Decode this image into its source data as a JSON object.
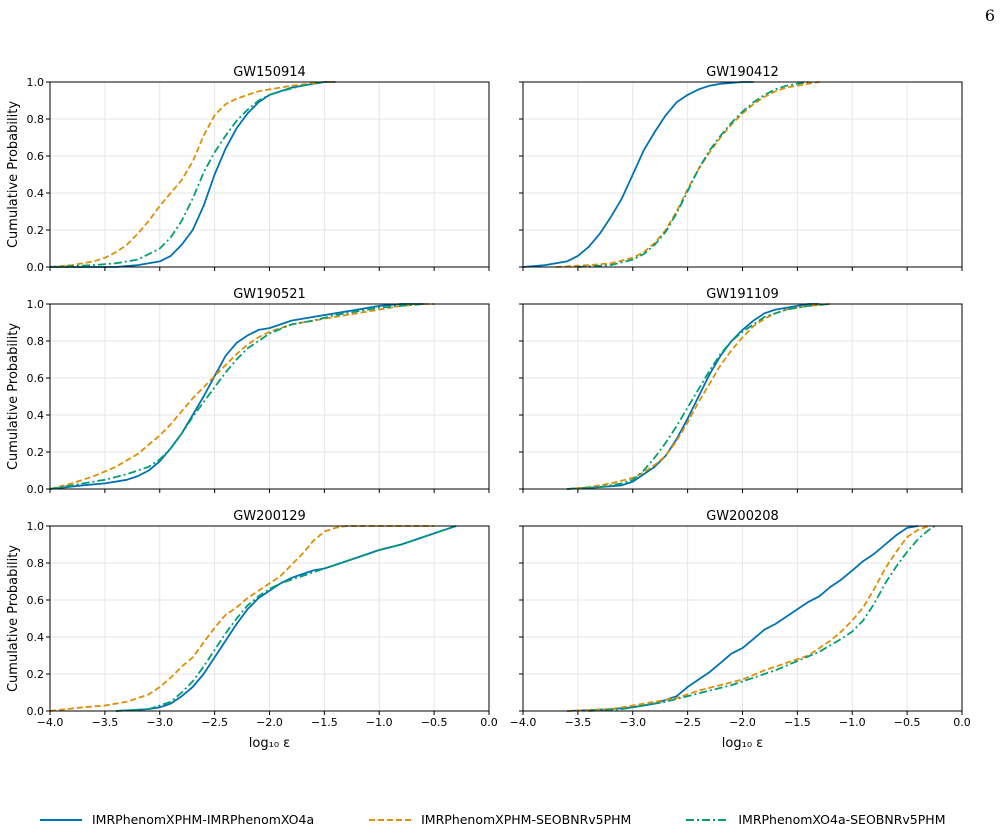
{
  "page": {
    "number": "6"
  },
  "chart_data": {
    "type": "line",
    "ylabel": "Cumulative Probability",
    "xlabel": "log₁₀ ε",
    "xlim": [
      -4.0,
      0.0
    ],
    "ylim": [
      0.0,
      1.0
    ],
    "xticks": [
      "−4.0",
      "−3.5",
      "−3.0",
      "−2.5",
      "−2.0",
      "−1.5",
      "−1.0",
      "−0.5",
      "0.0"
    ],
    "yticks": [
      "0.0",
      "0.2",
      "0.4",
      "0.6",
      "0.8",
      "1.0"
    ],
    "grid": true,
    "legend": {
      "placement": "bottom",
      "entries": [
        {
          "name": "IMRPhenomXPHM-IMRPhenomXO4a",
          "color": "#0072b2",
          "style": "solid"
        },
        {
          "name": "IMRPhenomXPHM-SEOBNRv5PHM",
          "color": "#de8f05",
          "style": "dashed"
        },
        {
          "name": "IMRPhenomXO4a-SEOBNRv5PHM",
          "color": "#029e73",
          "style": "dashdot"
        }
      ]
    },
    "panels": [
      {
        "title": "GW150914",
        "series": [
          {
            "name": "IMRPhenomXPHM-IMRPhenomXO4a",
            "x": [
              -4.0,
              -3.4,
              -3.2,
              -3.0,
              -2.9,
              -2.8,
              -2.7,
              -2.6,
              -2.5,
              -2.4,
              -2.3,
              -2.2,
              -2.1,
              -2.0,
              -1.9,
              -1.8,
              -1.6,
              -1.5,
              -1.4
            ],
            "y": [
              0.0,
              0.0,
              0.01,
              0.03,
              0.06,
              0.12,
              0.2,
              0.33,
              0.5,
              0.64,
              0.75,
              0.83,
              0.89,
              0.93,
              0.95,
              0.97,
              0.99,
              1.0,
              1.0
            ]
          },
          {
            "name": "IMRPhenomXPHM-SEOBNRv5PHM",
            "x": [
              -4.0,
              -3.8,
              -3.6,
              -3.5,
              -3.4,
              -3.3,
              -3.2,
              -3.1,
              -3.0,
              -2.9,
              -2.8,
              -2.7,
              -2.6,
              -2.5,
              -2.4,
              -2.3,
              -2.2,
              -2.1,
              -2.0,
              -1.8,
              -1.5,
              -1.4
            ],
            "y": [
              0.0,
              0.01,
              0.03,
              0.05,
              0.08,
              0.12,
              0.18,
              0.25,
              0.33,
              0.4,
              0.47,
              0.57,
              0.71,
              0.82,
              0.88,
              0.91,
              0.93,
              0.95,
              0.96,
              0.98,
              1.0,
              1.0
            ]
          },
          {
            "name": "IMRPhenomXO4a-SEOBNRv5PHM",
            "x": [
              -4.0,
              -3.6,
              -3.4,
              -3.2,
              -3.0,
              -2.9,
              -2.8,
              -2.7,
              -2.6,
              -2.5,
              -2.4,
              -2.3,
              -2.2,
              -2.1,
              -2.0,
              -1.9,
              -1.7,
              -1.5
            ],
            "y": [
              0.0,
              0.01,
              0.02,
              0.04,
              0.1,
              0.16,
              0.25,
              0.37,
              0.51,
              0.62,
              0.71,
              0.79,
              0.85,
              0.9,
              0.93,
              0.95,
              0.98,
              1.0
            ]
          }
        ]
      },
      {
        "title": "GW190412",
        "series": [
          {
            "name": "IMRPhenomXPHM-IMRPhenomXO4a",
            "x": [
              -4.0,
              -3.8,
              -3.6,
              -3.5,
              -3.4,
              -3.3,
              -3.2,
              -3.1,
              -3.0,
              -2.9,
              -2.8,
              -2.7,
              -2.6,
              -2.5,
              -2.4,
              -2.3,
              -2.2,
              -2.0,
              -1.9
            ],
            "y": [
              0.0,
              0.01,
              0.03,
              0.06,
              0.11,
              0.18,
              0.27,
              0.37,
              0.5,
              0.63,
              0.73,
              0.82,
              0.89,
              0.93,
              0.96,
              0.98,
              0.99,
              1.0,
              1.0
            ]
          },
          {
            "name": "IMRPhenomXPHM-SEOBNRv5PHM",
            "x": [
              -3.7,
              -3.4,
              -3.2,
              -3.0,
              -2.9,
              -2.8,
              -2.7,
              -2.6,
              -2.5,
              -2.4,
              -2.3,
              -2.2,
              -2.1,
              -2.0,
              -1.9,
              -1.8,
              -1.7,
              -1.6,
              -1.5,
              -1.4,
              -1.3
            ],
            "y": [
              0.0,
              0.01,
              0.02,
              0.05,
              0.08,
              0.13,
              0.2,
              0.3,
              0.42,
              0.53,
              0.62,
              0.7,
              0.77,
              0.83,
              0.88,
              0.92,
              0.95,
              0.97,
              0.98,
              0.99,
              1.0
            ]
          },
          {
            "name": "IMRPhenomXO4a-SEOBNRv5PHM",
            "x": [
              -3.5,
              -3.2,
              -3.0,
              -2.9,
              -2.8,
              -2.7,
              -2.6,
              -2.5,
              -2.4,
              -2.3,
              -2.2,
              -2.1,
              -2.0,
              -1.9,
              -1.8,
              -1.7,
              -1.6,
              -1.5,
              -1.4
            ],
            "y": [
              0.0,
              0.01,
              0.04,
              0.07,
              0.12,
              0.19,
              0.29,
              0.41,
              0.53,
              0.63,
              0.71,
              0.78,
              0.84,
              0.89,
              0.93,
              0.96,
              0.98,
              0.99,
              1.0
            ]
          }
        ]
      },
      {
        "title": "GW190521",
        "series": [
          {
            "name": "IMRPhenomXPHM-IMRPhenomXO4a",
            "x": [
              -4.0,
              -3.7,
              -3.5,
              -3.3,
              -3.2,
              -3.1,
              -3.0,
              -2.9,
              -2.8,
              -2.7,
              -2.6,
              -2.5,
              -2.4,
              -2.3,
              -2.2,
              -2.1,
              -2.0,
              -1.9,
              -1.8,
              -1.6,
              -1.4,
              -1.2,
              -1.0,
              -0.8,
              -0.6
            ],
            "y": [
              0.0,
              0.02,
              0.03,
              0.05,
              0.07,
              0.1,
              0.15,
              0.22,
              0.3,
              0.4,
              0.5,
              0.61,
              0.72,
              0.79,
              0.83,
              0.86,
              0.87,
              0.89,
              0.91,
              0.93,
              0.95,
              0.97,
              0.99,
              1.0,
              1.0
            ]
          },
          {
            "name": "IMRPhenomXPHM-SEOBNRv5PHM",
            "x": [
              -4.0,
              -3.8,
              -3.6,
              -3.4,
              -3.2,
              -3.0,
              -2.9,
              -2.8,
              -2.7,
              -2.6,
              -2.5,
              -2.4,
              -2.3,
              -2.2,
              -2.1,
              -2.0,
              -1.8,
              -1.6,
              -1.4,
              -1.2,
              -1.0,
              -0.8,
              -0.6,
              -0.5
            ],
            "y": [
              0.0,
              0.03,
              0.07,
              0.12,
              0.19,
              0.29,
              0.35,
              0.42,
              0.49,
              0.55,
              0.61,
              0.67,
              0.73,
              0.78,
              0.82,
              0.85,
              0.89,
              0.91,
              0.93,
              0.95,
              0.97,
              0.99,
              1.0,
              1.0
            ]
          },
          {
            "name": "IMRPhenomXO4a-SEOBNRv5PHM",
            "x": [
              -4.0,
              -3.7,
              -3.5,
              -3.3,
              -3.1,
              -3.0,
              -2.9,
              -2.8,
              -2.7,
              -2.6,
              -2.5,
              -2.4,
              -2.3,
              -2.2,
              -2.1,
              -2.0,
              -1.8,
              -1.6,
              -1.4,
              -1.2,
              -1.0,
              -0.8,
              -0.6
            ],
            "y": [
              0.0,
              0.03,
              0.05,
              0.08,
              0.12,
              0.16,
              0.22,
              0.3,
              0.39,
              0.47,
              0.55,
              0.63,
              0.7,
              0.76,
              0.8,
              0.84,
              0.89,
              0.91,
              0.94,
              0.96,
              0.98,
              0.99,
              1.0
            ]
          }
        ]
      },
      {
        "title": "GW191109",
        "series": [
          {
            "name": "IMRPhenomXPHM-IMRPhenomXO4a",
            "x": [
              -3.6,
              -3.3,
              -3.1,
              -3.0,
              -2.9,
              -2.8,
              -2.7,
              -2.6,
              -2.5,
              -2.4,
              -2.3,
              -2.2,
              -2.1,
              -2.0,
              -1.9,
              -1.8,
              -1.7,
              -1.6,
              -1.5,
              -1.4,
              -1.3
            ],
            "y": [
              0.0,
              0.01,
              0.02,
              0.04,
              0.08,
              0.12,
              0.18,
              0.27,
              0.38,
              0.5,
              0.62,
              0.72,
              0.8,
              0.86,
              0.91,
              0.95,
              0.97,
              0.98,
              0.99,
              1.0,
              1.0
            ]
          },
          {
            "name": "IMRPhenomXPHM-SEOBNRv5PHM",
            "x": [
              -3.6,
              -3.4,
              -3.2,
              -3.0,
              -2.9,
              -2.8,
              -2.7,
              -2.6,
              -2.5,
              -2.4,
              -2.3,
              -2.2,
              -2.1,
              -2.0,
              -1.9,
              -1.8,
              -1.7,
              -1.6,
              -1.5,
              -1.4,
              -1.2
            ],
            "y": [
              0.0,
              0.01,
              0.03,
              0.06,
              0.09,
              0.13,
              0.18,
              0.26,
              0.36,
              0.47,
              0.57,
              0.67,
              0.75,
              0.82,
              0.88,
              0.92,
              0.95,
              0.97,
              0.98,
              0.99,
              1.0
            ]
          },
          {
            "name": "IMRPhenomXO4a-SEOBNRv5PHM",
            "x": [
              -3.6,
              -3.3,
              -3.1,
              -3.0,
              -2.9,
              -2.8,
              -2.7,
              -2.6,
              -2.5,
              -2.4,
              -2.3,
              -2.2,
              -2.1,
              -2.0,
              -1.9,
              -1.8,
              -1.7,
              -1.6,
              -1.5,
              -1.4,
              -1.2
            ],
            "y": [
              0.0,
              0.01,
              0.03,
              0.05,
              0.1,
              0.17,
              0.25,
              0.34,
              0.44,
              0.54,
              0.64,
              0.73,
              0.8,
              0.85,
              0.89,
              0.93,
              0.95,
              0.97,
              0.98,
              0.99,
              1.0
            ]
          }
        ]
      },
      {
        "title": "GW200129",
        "series": [
          {
            "name": "IMRPhenomXPHM-IMRPhenomXO4a",
            "x": [
              -3.4,
              -3.1,
              -3.0,
              -2.9,
              -2.8,
              -2.7,
              -2.6,
              -2.5,
              -2.4,
              -2.3,
              -2.2,
              -2.1,
              -2.0,
              -1.9,
              -1.8,
              -1.7,
              -1.6,
              -1.5,
              -1.4,
              -1.2,
              -1.0,
              -0.8,
              -0.6,
              -0.4,
              -0.3
            ],
            "y": [
              0.0,
              0.01,
              0.02,
              0.04,
              0.08,
              0.13,
              0.2,
              0.29,
              0.38,
              0.47,
              0.55,
              0.61,
              0.65,
              0.69,
              0.72,
              0.74,
              0.76,
              0.77,
              0.79,
              0.83,
              0.87,
              0.9,
              0.94,
              0.98,
              1.0
            ]
          },
          {
            "name": "IMRPhenomXPHM-SEOBNRv5PHM",
            "x": [
              -4.0,
              -3.7,
              -3.5,
              -3.3,
              -3.1,
              -3.0,
              -2.9,
              -2.8,
              -2.7,
              -2.6,
              -2.5,
              -2.4,
              -2.3,
              -2.2,
              -2.1,
              -2.0,
              -1.9,
              -1.8,
              -1.7,
              -1.6,
              -1.5,
              -1.4,
              -1.3,
              -1.0,
              -0.5
            ],
            "y": [
              0.0,
              0.02,
              0.03,
              0.05,
              0.09,
              0.13,
              0.18,
              0.24,
              0.29,
              0.37,
              0.45,
              0.52,
              0.56,
              0.61,
              0.65,
              0.69,
              0.73,
              0.79,
              0.85,
              0.92,
              0.97,
              0.99,
              1.0,
              1.0,
              1.0
            ]
          },
          {
            "name": "IMRPhenomXO4a-SEOBNRv5PHM",
            "x": [
              -3.4,
              -3.1,
              -3.0,
              -2.9,
              -2.8,
              -2.7,
              -2.6,
              -2.5,
              -2.4,
              -2.3,
              -2.2,
              -2.1,
              -2.0,
              -1.9,
              -1.8,
              -1.7,
              -1.6,
              -1.5,
              -1.4,
              -1.2,
              -1.0,
              -0.8,
              -0.6,
              -0.4,
              -0.3
            ],
            "y": [
              0.0,
              0.01,
              0.03,
              0.05,
              0.1,
              0.16,
              0.24,
              0.33,
              0.42,
              0.5,
              0.57,
              0.62,
              0.66,
              0.69,
              0.71,
              0.73,
              0.75,
              0.77,
              0.79,
              0.83,
              0.87,
              0.9,
              0.94,
              0.98,
              1.0
            ]
          }
        ]
      },
      {
        "title": "GW200208",
        "series": [
          {
            "name": "IMRPhenomXPHM-IMRPhenomXO4a",
            "x": [
              -3.6,
              -3.2,
              -3.0,
              -2.8,
              -2.6,
              -2.5,
              -2.4,
              -2.3,
              -2.2,
              -2.1,
              -2.0,
              -1.9,
              -1.8,
              -1.7,
              -1.6,
              -1.5,
              -1.4,
              -1.3,
              -1.2,
              -1.1,
              -1.0,
              -0.9,
              -0.8,
              -0.7,
              -0.6,
              -0.5,
              -0.4
            ],
            "y": [
              0.0,
              0.01,
              0.02,
              0.04,
              0.08,
              0.13,
              0.17,
              0.21,
              0.26,
              0.31,
              0.34,
              0.39,
              0.44,
              0.47,
              0.51,
              0.55,
              0.59,
              0.62,
              0.67,
              0.71,
              0.76,
              0.81,
              0.85,
              0.9,
              0.95,
              0.99,
              1.0
            ]
          },
          {
            "name": "IMRPhenomXPHM-SEOBNRv5PHM",
            "x": [
              -3.6,
              -3.2,
              -3.0,
              -2.8,
              -2.6,
              -2.5,
              -2.4,
              -2.2,
              -2.0,
              -1.8,
              -1.6,
              -1.4,
              -1.2,
              -1.1,
              -1.0,
              -0.9,
              -0.8,
              -0.7,
              -0.6,
              -0.5,
              -0.4,
              -0.3
            ],
            "y": [
              0.0,
              0.01,
              0.03,
              0.05,
              0.07,
              0.09,
              0.11,
              0.14,
              0.17,
              0.22,
              0.26,
              0.3,
              0.38,
              0.43,
              0.49,
              0.56,
              0.66,
              0.77,
              0.86,
              0.94,
              0.98,
              1.0
            ]
          },
          {
            "name": "IMRPhenomXO4a-SEOBNRv5PHM",
            "x": [
              -3.4,
              -3.1,
              -2.9,
              -2.7,
              -2.5,
              -2.3,
              -2.1,
              -1.9,
              -1.7,
              -1.5,
              -1.3,
              -1.1,
              -1.0,
              -0.9,
              -0.8,
              -0.7,
              -0.6,
              -0.5,
              -0.4,
              -0.3,
              -0.25
            ],
            "y": [
              0.0,
              0.01,
              0.03,
              0.05,
              0.08,
              0.11,
              0.14,
              0.18,
              0.22,
              0.27,
              0.32,
              0.39,
              0.43,
              0.49,
              0.58,
              0.69,
              0.78,
              0.86,
              0.93,
              0.98,
              1.0
            ]
          }
        ]
      }
    ]
  }
}
